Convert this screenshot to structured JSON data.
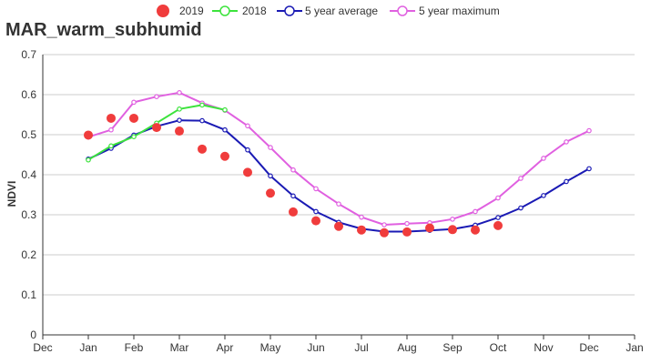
{
  "chart_data": {
    "type": "line",
    "title": "MAR_warm_subhumid",
    "ylabel": "NDVI",
    "xlabel": "",
    "ylim": [
      0,
      0.7
    ],
    "yticks": [
      "0",
      "0.1",
      "0.2",
      "0.3",
      "0.4",
      "0.5",
      "0.6",
      "0.7"
    ],
    "xticks": [
      "Dec",
      "Jan",
      "Feb",
      "Mar",
      "Apr",
      "May",
      "Jun",
      "Jul",
      "Aug",
      "Sep",
      "Oct",
      "Nov",
      "Dec",
      "Jan"
    ],
    "grid": true,
    "legend_position": "top",
    "series": [
      {
        "name": "2019",
        "kind": "scatter",
        "color": "#f03c3c",
        "x": [
          1,
          1.5,
          2,
          2.5,
          3,
          3.5,
          4,
          4.5,
          5,
          5.5,
          6,
          6.5,
          7,
          7.5,
          8,
          8.5,
          9,
          9.5,
          10
        ],
        "y": [
          0.499,
          0.541,
          0.541,
          0.518,
          0.509,
          0.464,
          0.446,
          0.406,
          0.354,
          0.307,
          0.285,
          0.271,
          0.262,
          0.255,
          0.257,
          0.267,
          0.263,
          0.262,
          0.273
        ]
      },
      {
        "name": "2018",
        "kind": "line",
        "color": "#3ce33c",
        "x": [
          1,
          1.5,
          2,
          2.5,
          3,
          3.5,
          4
        ],
        "y": [
          0.437,
          0.472,
          0.495,
          0.529,
          0.564,
          0.574,
          0.562
        ]
      },
      {
        "name": "5 year average",
        "kind": "line",
        "color": "#1a1ab4",
        "x": [
          1,
          1.5,
          2,
          2.5,
          3,
          3.5,
          4,
          4.5,
          5,
          5.5,
          6,
          6.5,
          7,
          7.5,
          8,
          8.5,
          9,
          9.5,
          10,
          10.5,
          11,
          11.5,
          12
        ],
        "y": [
          0.439,
          0.466,
          0.499,
          0.521,
          0.536,
          0.535,
          0.512,
          0.462,
          0.397,
          0.347,
          0.308,
          0.281,
          0.265,
          0.258,
          0.258,
          0.261,
          0.264,
          0.274,
          0.293,
          0.317,
          0.348,
          0.383,
          0.415
        ]
      },
      {
        "name": "5 year maximum",
        "kind": "line",
        "color": "#e060e0",
        "x": [
          1,
          1.5,
          2,
          2.5,
          3,
          3.5,
          4,
          4.5,
          5,
          5.5,
          6,
          6.5,
          7,
          7.5,
          8,
          8.5,
          9,
          9.5,
          10,
          10.5,
          11,
          11.5,
          12
        ],
        "y": [
          0.494,
          0.512,
          0.581,
          0.595,
          0.605,
          0.579,
          0.561,
          0.522,
          0.468,
          0.412,
          0.365,
          0.327,
          0.294,
          0.275,
          0.278,
          0.28,
          0.289,
          0.308,
          0.342,
          0.391,
          0.441,
          0.482,
          0.51
        ]
      }
    ]
  }
}
